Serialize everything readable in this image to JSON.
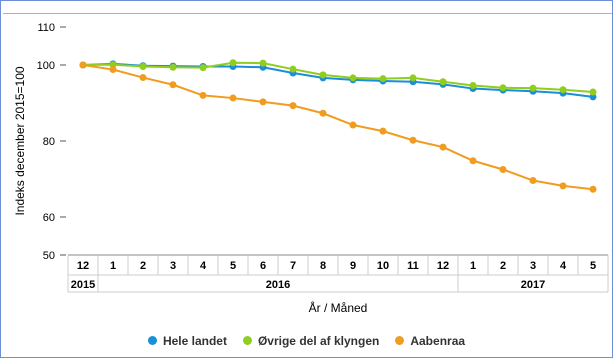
{
  "chart_data": {
    "type": "line",
    "ylabel": "Indeks december 2015=100",
    "xlabel": "År / Måned",
    "yticks": [
      50,
      60,
      80,
      100,
      110
    ],
    "ylim": [
      50,
      110
    ],
    "grid": false,
    "legend_position": "bottom",
    "months": [
      "12",
      "1",
      "2",
      "3",
      "4",
      "5",
      "6",
      "7",
      "8",
      "9",
      "10",
      "11",
      "12",
      "1",
      "2",
      "3",
      "4",
      "5"
    ],
    "years": [
      {
        "label": "2015",
        "span": 1
      },
      {
        "label": "2016",
        "span": 12
      },
      {
        "label": "2017",
        "span": 5
      }
    ],
    "series": [
      {
        "name": "Hele landet",
        "color": "#1a8ed8",
        "values": [
          100,
          100.3,
          99.8,
          99.7,
          99.6,
          99.6,
          99.4,
          97.9,
          96.6,
          96.1,
          95.8,
          95.6,
          94.9,
          93.8,
          93.4,
          93.1,
          92.6,
          91.6
        ]
      },
      {
        "name": "Øvrige del af klyngen",
        "color": "#8fcd1f",
        "values": [
          100,
          100.1,
          99.6,
          99.4,
          99.3,
          100.6,
          100.5,
          98.9,
          97.4,
          96.6,
          96.4,
          96.6,
          95.6,
          94.6,
          94.0,
          93.9,
          93.5,
          92.9
        ]
      },
      {
        "name": "Aabenraa",
        "color": "#f09c20",
        "values": [
          100,
          98.8,
          96.7,
          94.8,
          92.0,
          91.3,
          90.3,
          89.3,
          87.3,
          84.2,
          82.6,
          80.2,
          78.4,
          74.8,
          72.5,
          69.6,
          68.2,
          67.3
        ]
      }
    ]
  }
}
